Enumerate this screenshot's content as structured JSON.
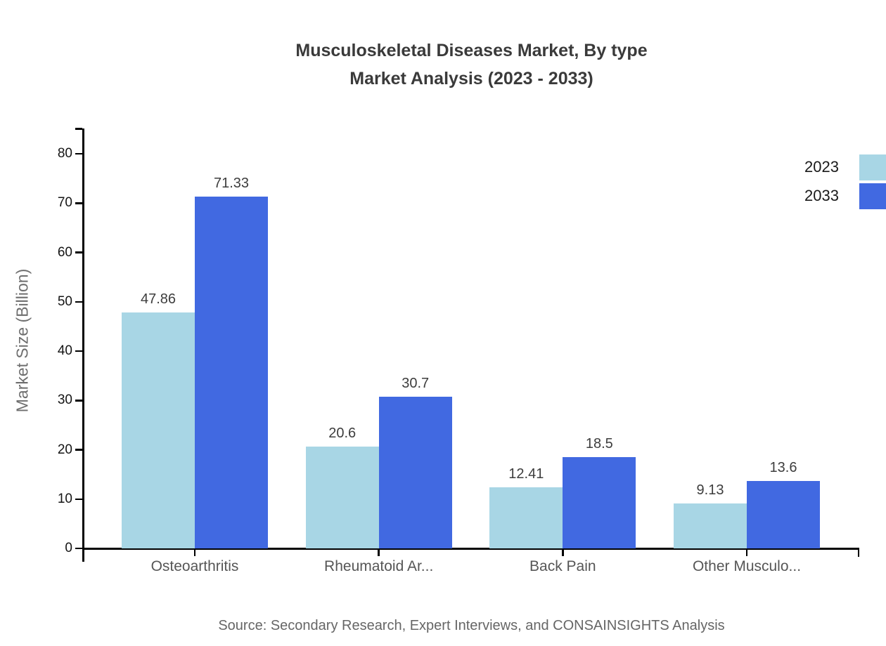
{
  "title": {
    "line1": "Musculoskeletal Diseases Market, By type",
    "line2": "Market Analysis (2023 - 2033)"
  },
  "footer": {
    "source": "Source: Secondary Research, Expert Interviews, and CONSAINSIGHTS Analysis"
  },
  "colors": {
    "series_2023": "#A8D6E5",
    "series_2033": "#4169E1",
    "axis": "#000000"
  },
  "chart_data": {
    "type": "bar",
    "title": "Musculoskeletal Diseases Market, By type Market Analysis (2023 - 2033)",
    "categories": [
      "Osteoarthritis",
      "Rheumatoid Ar...",
      "Back Pain",
      "Other Musculo..."
    ],
    "series": [
      {
        "name": "2023",
        "color": "#A8D6E5",
        "values": [
          47.86,
          20.6,
          12.41,
          9.13
        ]
      },
      {
        "name": "2033",
        "color": "#4169E1",
        "values": [
          71.33,
          30.7,
          18.5,
          13.6
        ]
      }
    ],
    "value_labels": [
      [
        "47.86",
        "20.6",
        "12.41",
        "9.13"
      ],
      [
        "71.33",
        "30.7",
        "18.5",
        "13.6"
      ]
    ],
    "xlabel": "",
    "ylabel": "Market Size (Billion)",
    "ylim": [
      0,
      80
    ],
    "yticks": [
      0,
      10,
      20,
      30,
      40,
      50,
      60,
      70,
      80
    ],
    "grid": false,
    "legend_position": "top-right"
  }
}
